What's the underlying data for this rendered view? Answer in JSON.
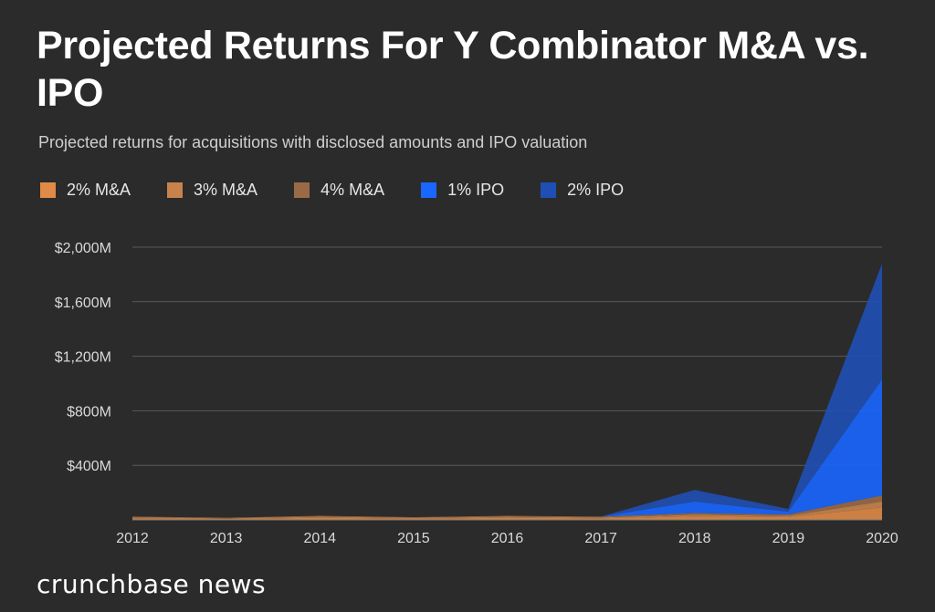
{
  "chart_data": {
    "type": "area",
    "title": "Projected Returns For Y Combinator M&A vs. IPO",
    "subtitle": "Projected returns for acquisitions with disclosed amounts and IPO valuation",
    "categories": [
      "2012",
      "2013",
      "2014",
      "2015",
      "2016",
      "2017",
      "2018",
      "2019",
      "2020"
    ],
    "yticks": [
      "$400M",
      "$800M",
      "$1,200M",
      "$1,600M",
      "$2,000M"
    ],
    "ytick_values": [
      400,
      800,
      1200,
      1600,
      2000
    ],
    "ylim": [
      0,
      2000
    ],
    "grid": true,
    "legend_position": "top",
    "stacked": true,
    "series": [
      {
        "name": "2% M&A",
        "color": "#e08a45",
        "values": [
          12,
          8,
          15,
          10,
          15,
          12,
          25,
          20,
          90
        ]
      },
      {
        "name": "3% M&A",
        "color": "#c8834d",
        "values": [
          6,
          4,
          8,
          5,
          8,
          6,
          13,
          10,
          45
        ]
      },
      {
        "name": "4% M&A",
        "color": "#9a6a47",
        "values": [
          6,
          4,
          7,
          5,
          7,
          6,
          12,
          10,
          45
        ]
      },
      {
        "name": "1% IPO",
        "color": "#1a66ff",
        "values": [
          0,
          0,
          0,
          0,
          0,
          0,
          85,
          20,
          850
        ]
      },
      {
        "name": "2% IPO",
        "color": "#1f4fb4",
        "values": [
          0,
          0,
          0,
          0,
          0,
          0,
          85,
          20,
          850
        ]
      }
    ]
  },
  "brand": "crunchbase news"
}
